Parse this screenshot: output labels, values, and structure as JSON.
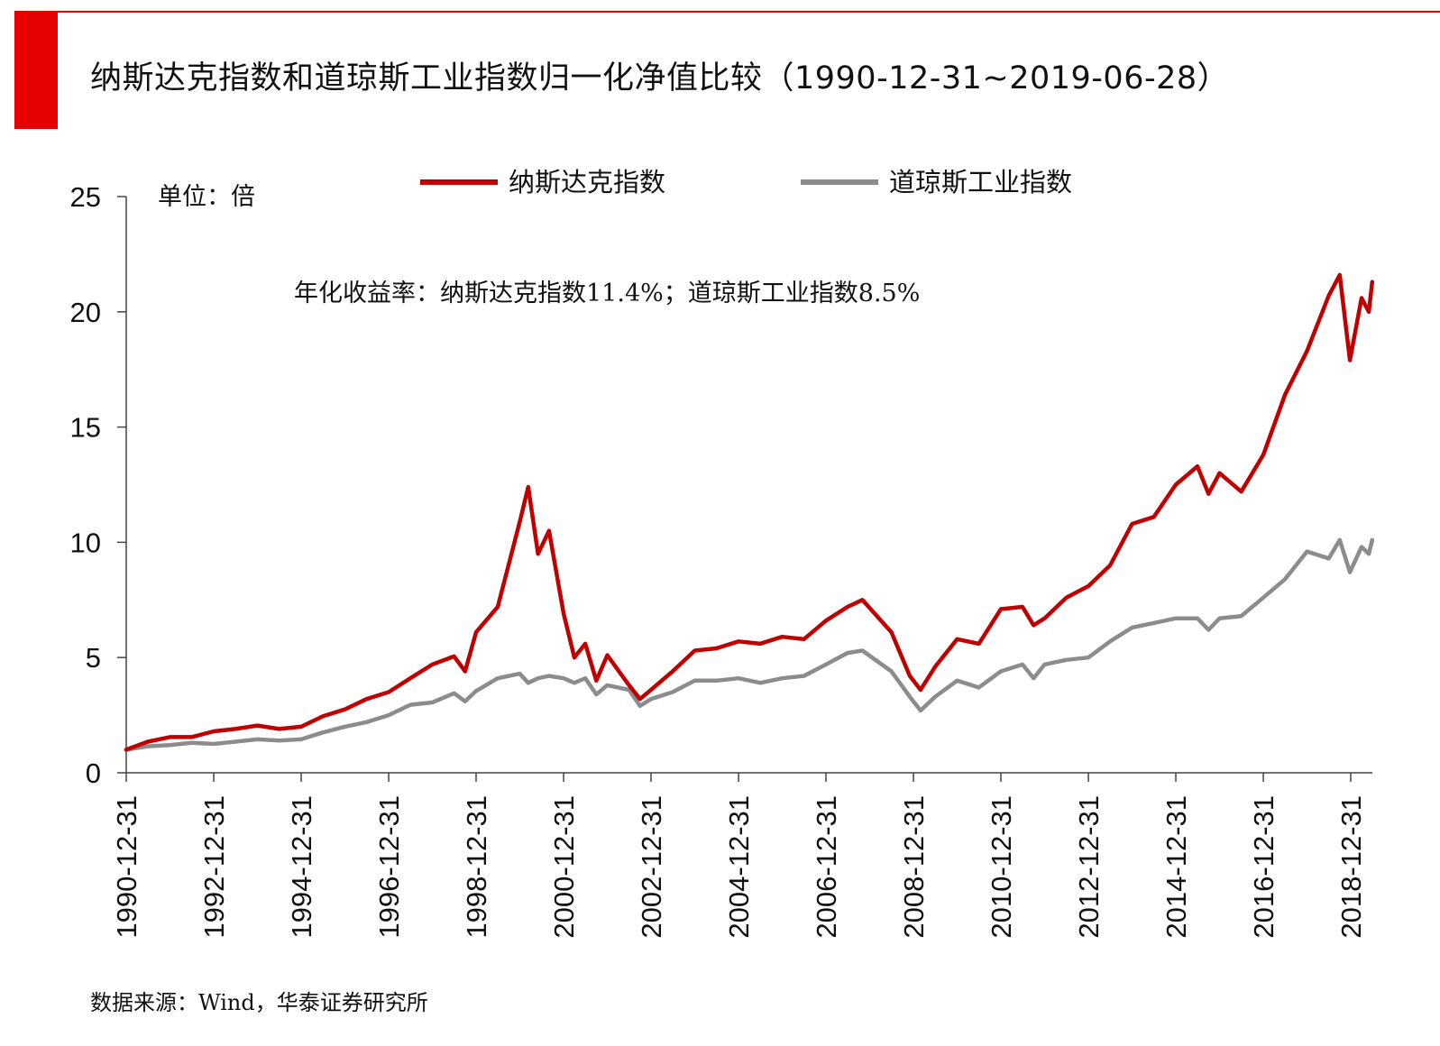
{
  "header": {
    "title": "纳斯达克指数和道琼斯工业指数归一化净值比较（1990-12-31~2019-06-28）"
  },
  "footer": {
    "source": "数据来源：Wind，华泰证券研究所"
  },
  "colors": {
    "accent": "#e60000",
    "nasdaq": "#c00000",
    "dow": "#8c8c8c"
  },
  "chart_data": {
    "type": "line",
    "unit_label": "单位：倍",
    "annotation": "年化收益率：纳斯达克指数11.4%；道琼斯工业指数8.5%",
    "ylim": [
      0,
      25
    ],
    "yticks": [
      0,
      5,
      10,
      15,
      20,
      25
    ],
    "xlim": [
      "1990-12-31",
      "2019-06-28"
    ],
    "xticks": [
      "1990-12-31",
      "1992-12-31",
      "1994-12-31",
      "1996-12-31",
      "1998-12-31",
      "2000-12-31",
      "2002-12-31",
      "2004-12-31",
      "2006-12-31",
      "2008-12-31",
      "2010-12-31",
      "2012-12-31",
      "2014-12-31",
      "2016-12-31",
      "2018-12-31"
    ],
    "grid": false,
    "legend_position": "top",
    "x": [
      "1990-12-31",
      "1991-06-30",
      "1991-12-31",
      "1992-06-30",
      "1992-12-31",
      "1993-06-30",
      "1993-12-31",
      "1994-06-30",
      "1994-12-31",
      "1995-06-30",
      "1995-12-31",
      "1996-06-30",
      "1996-12-31",
      "1997-06-30",
      "1997-12-31",
      "1998-06-30",
      "1998-09-30",
      "1998-12-31",
      "1999-06-30",
      "1999-12-31",
      "2000-03-10",
      "2000-05-31",
      "2000-08-31",
      "2000-12-31",
      "2001-03-31",
      "2001-06-30",
      "2001-09-30",
      "2001-12-31",
      "2002-06-30",
      "2002-09-30",
      "2002-12-31",
      "2003-06-30",
      "2003-12-31",
      "2004-06-30",
      "2004-12-31",
      "2005-06-30",
      "2005-12-31",
      "2006-06-30",
      "2006-12-31",
      "2007-06-30",
      "2007-10-31",
      "2008-06-30",
      "2008-11-30",
      "2009-02-28",
      "2009-06-30",
      "2009-12-31",
      "2010-06-30",
      "2010-12-31",
      "2011-06-30",
      "2011-09-30",
      "2011-12-31",
      "2012-06-30",
      "2012-12-31",
      "2013-06-30",
      "2013-12-31",
      "2014-06-30",
      "2014-12-31",
      "2015-06-30",
      "2015-09-30",
      "2015-12-31",
      "2016-06-30",
      "2016-12-31",
      "2017-06-30",
      "2017-12-31",
      "2018-06-30",
      "2018-09-30",
      "2018-12-24",
      "2019-03-31",
      "2019-05-31",
      "2019-06-28"
    ],
    "series": [
      {
        "name": "纳斯达克指数",
        "color": "#c00000",
        "values": [
          1.0,
          1.35,
          1.55,
          1.55,
          1.8,
          1.9,
          2.05,
          1.9,
          2.0,
          2.45,
          2.75,
          3.2,
          3.5,
          4.1,
          4.7,
          5.05,
          4.4,
          6.1,
          7.2,
          10.9,
          12.4,
          9.5,
          10.5,
          6.9,
          5.0,
          5.6,
          4.0,
          5.1,
          3.8,
          3.2,
          3.6,
          4.4,
          5.3,
          5.4,
          5.7,
          5.6,
          5.9,
          5.8,
          6.6,
          7.2,
          7.5,
          6.1,
          4.2,
          3.6,
          4.6,
          5.8,
          5.6,
          7.1,
          7.2,
          6.4,
          6.7,
          7.6,
          8.1,
          9.0,
          10.8,
          11.1,
          12.5,
          13.3,
          12.1,
          13.0,
          12.2,
          13.8,
          16.4,
          18.3,
          20.7,
          21.6,
          17.9,
          20.6,
          20.0,
          21.3
        ]
      },
      {
        "name": "道琼斯工业指数",
        "color": "#8c8c8c",
        "values": [
          1.0,
          1.15,
          1.2,
          1.3,
          1.25,
          1.35,
          1.45,
          1.4,
          1.45,
          1.75,
          2.0,
          2.2,
          2.5,
          2.95,
          3.05,
          3.45,
          3.1,
          3.55,
          4.1,
          4.3,
          3.9,
          4.1,
          4.2,
          4.1,
          3.9,
          4.1,
          3.4,
          3.8,
          3.6,
          2.9,
          3.2,
          3.5,
          4.0,
          4.0,
          4.1,
          3.9,
          4.1,
          4.2,
          4.7,
          5.2,
          5.3,
          4.4,
          3.3,
          2.7,
          3.3,
          4.0,
          3.7,
          4.4,
          4.7,
          4.1,
          4.7,
          4.9,
          5.0,
          5.7,
          6.3,
          6.5,
          6.7,
          6.7,
          6.2,
          6.7,
          6.8,
          7.6,
          8.4,
          9.6,
          9.3,
          10.1,
          8.7,
          9.8,
          9.5,
          10.1
        ]
      }
    ]
  }
}
